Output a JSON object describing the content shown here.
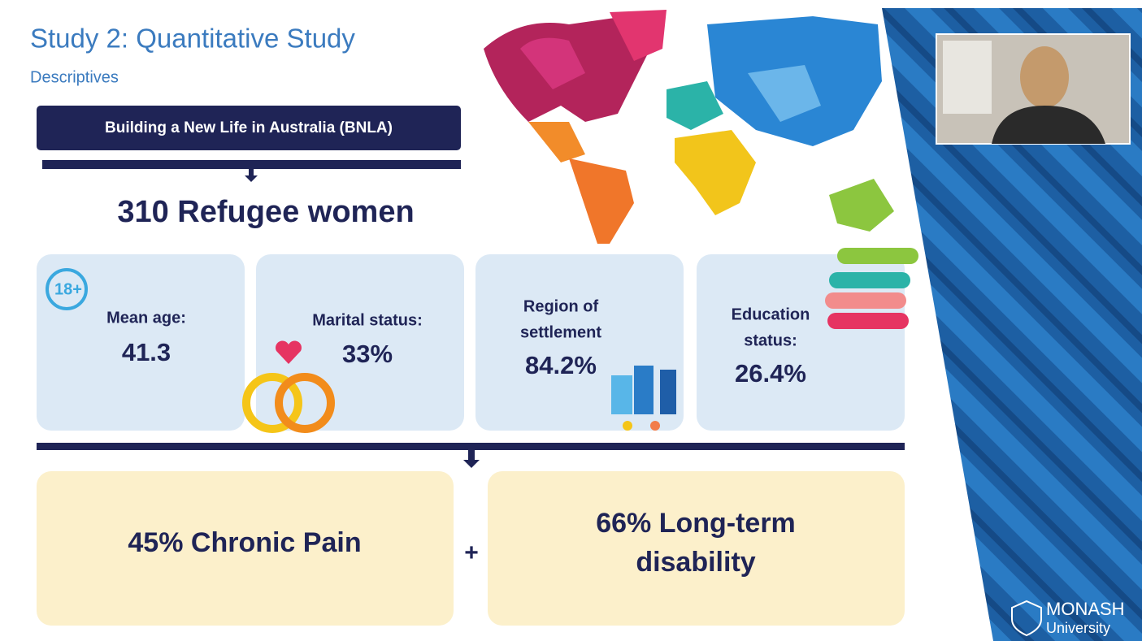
{
  "header": {
    "title": "Study 2: Quantitative Study",
    "subtitle": "Descriptives"
  },
  "source": "Building a New Life in Australia (BNLA)",
  "headline": "310 Refugee women",
  "cards": [
    {
      "icon": "18+",
      "label": [
        "Mean age:"
      ],
      "value": "41.3"
    },
    {
      "label": [
        "Marital status:"
      ],
      "value": "33%"
    },
    {
      "label": [
        "Region of",
        "settlement"
      ],
      "value": "84.2%"
    },
    {
      "label": [
        "Education",
        "status:"
      ],
      "value": "26.4%"
    }
  ],
  "outcomes": [
    {
      "lines": [
        "45% Chronic Pain"
      ]
    },
    {
      "lines": [
        "66% Long-term",
        "disability"
      ]
    }
  ],
  "connector": "+",
  "logo": {
    "name": "MONASH",
    "sub": "University"
  }
}
